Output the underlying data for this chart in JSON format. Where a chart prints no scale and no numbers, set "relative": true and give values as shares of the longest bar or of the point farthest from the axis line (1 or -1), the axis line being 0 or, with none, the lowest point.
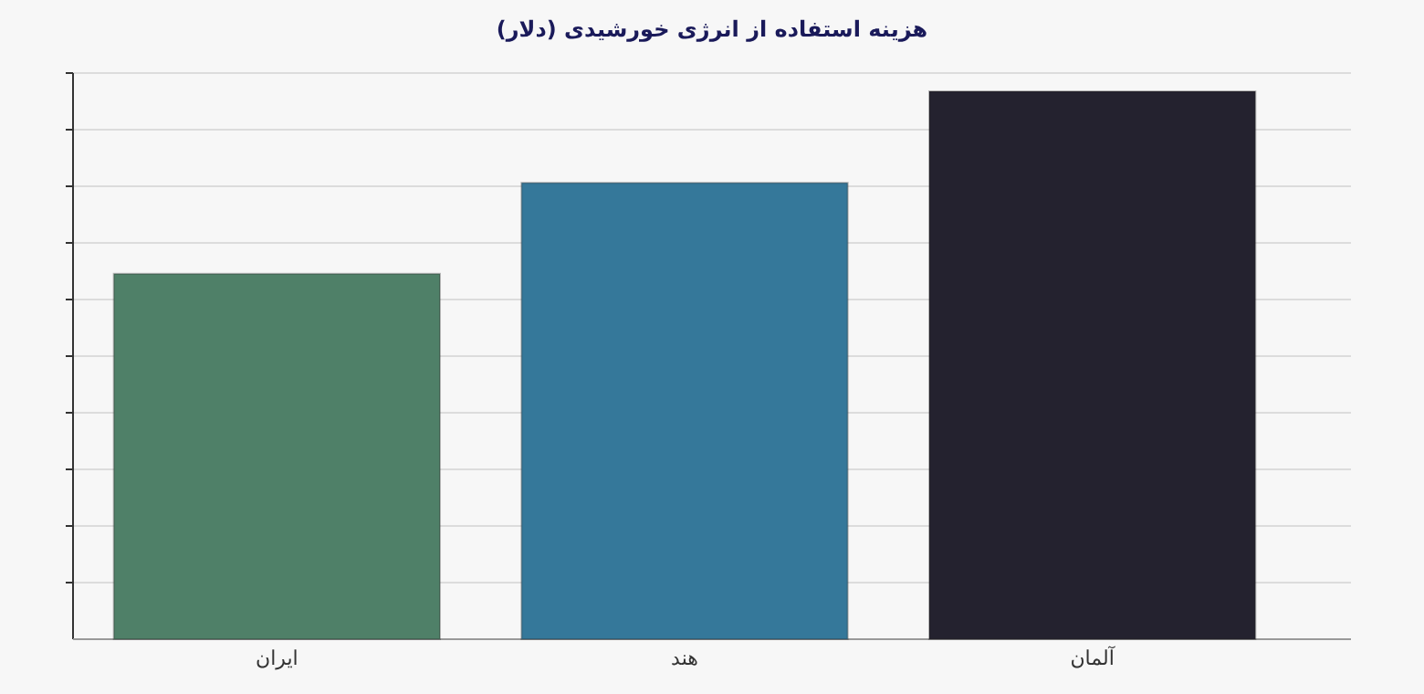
{
  "chart_data": {
    "type": "bar",
    "title": "هزینه استفاده از انرژی خورشیدی (دلار)",
    "categories": [
      "ایران",
      "هند",
      "آلمان"
    ],
    "values": [
      0.667,
      0.833,
      1
    ],
    "colors": [
      "#4f8068",
      "#35789a",
      "#24222f"
    ],
    "relative": true,
    "grid": "y"
  }
}
